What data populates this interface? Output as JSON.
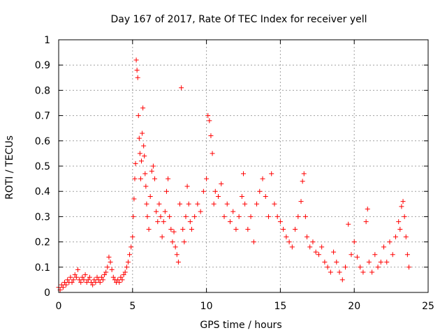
{
  "chart_data": {
    "type": "scatter",
    "title": "Day 167 of 2017, Rate Of TEC Index for receiver yell",
    "xlabel": "GPS time / hours",
    "ylabel": "ROTI / TECUs",
    "xlim": [
      0,
      25
    ],
    "ylim": [
      0,
      1
    ],
    "x_ticks": [
      0,
      5,
      10,
      15,
      20,
      25
    ],
    "y_ticks": [
      0,
      0.1,
      0.2,
      0.3,
      0.4,
      0.5,
      0.6,
      0.7,
      0.8,
      0.9,
      1
    ],
    "x_tick_labels": [
      "0",
      "5",
      "10",
      "15",
      "20",
      "25"
    ],
    "y_tick_labels": [
      "0",
      "0.1",
      "0.2",
      "0.3",
      "0.4",
      "0.5",
      "0.6",
      "0.7",
      "0.8",
      "0.9",
      "1"
    ],
    "grid": true,
    "marker": "plus",
    "color": "#ff0000",
    "series": [
      {
        "points": [
          [
            0.0,
            0.02
          ],
          [
            0.1,
            0.01
          ],
          [
            0.2,
            0.03
          ],
          [
            0.3,
            0.02
          ],
          [
            0.4,
            0.04
          ],
          [
            0.5,
            0.03
          ],
          [
            0.6,
            0.05
          ],
          [
            0.7,
            0.04
          ],
          [
            0.8,
            0.06
          ],
          [
            0.9,
            0.04
          ],
          [
            1.0,
            0.05
          ],
          [
            1.1,
            0.07
          ],
          [
            1.2,
            0.06
          ],
          [
            1.3,
            0.09
          ],
          [
            1.4,
            0.05
          ],
          [
            1.5,
            0.04
          ],
          [
            1.6,
            0.06
          ],
          [
            1.7,
            0.05
          ],
          [
            1.8,
            0.07
          ],
          [
            1.9,
            0.04
          ],
          [
            2.0,
            0.05
          ],
          [
            2.1,
            0.06
          ],
          [
            2.2,
            0.04
          ],
          [
            2.3,
            0.03
          ],
          [
            2.4,
            0.05
          ],
          [
            2.5,
            0.04
          ],
          [
            2.6,
            0.06
          ],
          [
            2.7,
            0.05
          ],
          [
            2.8,
            0.04
          ],
          [
            2.9,
            0.06
          ],
          [
            3.0,
            0.05
          ],
          [
            3.1,
            0.07
          ],
          [
            3.2,
            0.08
          ],
          [
            3.3,
            0.1
          ],
          [
            3.4,
            0.14
          ],
          [
            3.5,
            0.12
          ],
          [
            3.6,
            0.09
          ],
          [
            3.7,
            0.06
          ],
          [
            3.8,
            0.05
          ],
          [
            3.9,
            0.04
          ],
          [
            4.0,
            0.05
          ],
          [
            4.1,
            0.04
          ],
          [
            4.2,
            0.06
          ],
          [
            4.3,
            0.05
          ],
          [
            4.4,
            0.07
          ],
          [
            4.5,
            0.08
          ],
          [
            4.6,
            0.1
          ],
          [
            4.7,
            0.12
          ],
          [
            4.8,
            0.15
          ],
          [
            4.9,
            0.18
          ],
          [
            5.0,
            0.22
          ],
          [
            5.05,
            0.3
          ],
          [
            5.1,
            0.37
          ],
          [
            5.15,
            0.45
          ],
          [
            5.2,
            0.51
          ],
          [
            5.25,
            0.92
          ],
          [
            5.3,
            0.88
          ],
          [
            5.35,
            0.85
          ],
          [
            5.4,
            0.7
          ],
          [
            5.45,
            0.61
          ],
          [
            5.5,
            0.55
          ],
          [
            5.55,
            0.45
          ],
          [
            5.6,
            0.52
          ],
          [
            5.65,
            0.63
          ],
          [
            5.7,
            0.73
          ],
          [
            5.75,
            0.58
          ],
          [
            5.8,
            0.54
          ],
          [
            5.85,
            0.47
          ],
          [
            5.9,
            0.42
          ],
          [
            5.95,
            0.35
          ],
          [
            6.0,
            0.3
          ],
          [
            6.1,
            0.25
          ],
          [
            6.2,
            0.38
          ],
          [
            6.3,
            0.48
          ],
          [
            6.4,
            0.5
          ],
          [
            6.5,
            0.45
          ],
          [
            6.6,
            0.32
          ],
          [
            6.7,
            0.28
          ],
          [
            6.8,
            0.35
          ],
          [
            6.9,
            0.3
          ],
          [
            7.0,
            0.22
          ],
          [
            7.1,
            0.28
          ],
          [
            7.2,
            0.32
          ],
          [
            7.3,
            0.4
          ],
          [
            7.4,
            0.45
          ],
          [
            7.5,
            0.3
          ],
          [
            7.6,
            0.25
          ],
          [
            7.7,
            0.2
          ],
          [
            7.8,
            0.24
          ],
          [
            7.9,
            0.18
          ],
          [
            8.0,
            0.15
          ],
          [
            8.1,
            0.12
          ],
          [
            8.2,
            0.35
          ],
          [
            8.3,
            0.81
          ],
          [
            8.4,
            0.25
          ],
          [
            8.5,
            0.2
          ],
          [
            8.6,
            0.3
          ],
          [
            8.7,
            0.42
          ],
          [
            8.8,
            0.35
          ],
          [
            8.9,
            0.28
          ],
          [
            9.0,
            0.25
          ],
          [
            9.2,
            0.3
          ],
          [
            9.4,
            0.35
          ],
          [
            9.6,
            0.32
          ],
          [
            9.8,
            0.4
          ],
          [
            10.0,
            0.45
          ],
          [
            10.1,
            0.7
          ],
          [
            10.2,
            0.68
          ],
          [
            10.3,
            0.62
          ],
          [
            10.4,
            0.55
          ],
          [
            10.5,
            0.35
          ],
          [
            10.6,
            0.4
          ],
          [
            10.8,
            0.38
          ],
          [
            11.0,
            0.43
          ],
          [
            11.2,
            0.3
          ],
          [
            11.4,
            0.35
          ],
          [
            11.6,
            0.28
          ],
          [
            11.8,
            0.32
          ],
          [
            12.0,
            0.25
          ],
          [
            12.2,
            0.3
          ],
          [
            12.4,
            0.38
          ],
          [
            12.5,
            0.47
          ],
          [
            12.6,
            0.35
          ],
          [
            12.8,
            0.25
          ],
          [
            13.0,
            0.3
          ],
          [
            13.2,
            0.2
          ],
          [
            13.4,
            0.35
          ],
          [
            13.6,
            0.4
          ],
          [
            13.8,
            0.45
          ],
          [
            14.0,
            0.38
          ],
          [
            14.2,
            0.3
          ],
          [
            14.4,
            0.47
          ],
          [
            14.6,
            0.35
          ],
          [
            14.8,
            0.3
          ],
          [
            15.0,
            0.28
          ],
          [
            15.2,
            0.25
          ],
          [
            15.4,
            0.22
          ],
          [
            15.6,
            0.2
          ],
          [
            15.8,
            0.18
          ],
          [
            16.0,
            0.25
          ],
          [
            16.2,
            0.3
          ],
          [
            16.4,
            0.36
          ],
          [
            16.5,
            0.44
          ],
          [
            16.6,
            0.47
          ],
          [
            16.7,
            0.3
          ],
          [
            16.8,
            0.22
          ],
          [
            17.0,
            0.18
          ],
          [
            17.2,
            0.2
          ],
          [
            17.4,
            0.16
          ],
          [
            17.6,
            0.15
          ],
          [
            17.8,
            0.18
          ],
          [
            18.0,
            0.12
          ],
          [
            18.2,
            0.1
          ],
          [
            18.4,
            0.08
          ],
          [
            18.6,
            0.16
          ],
          [
            18.8,
            0.12
          ],
          [
            19.0,
            0.08
          ],
          [
            19.2,
            0.05
          ],
          [
            19.4,
            0.1
          ],
          [
            19.6,
            0.27
          ],
          [
            19.8,
            0.15
          ],
          [
            20.0,
            0.2
          ],
          [
            20.2,
            0.14
          ],
          [
            20.4,
            0.1
          ],
          [
            20.6,
            0.08
          ],
          [
            20.8,
            0.28
          ],
          [
            20.9,
            0.33
          ],
          [
            21.0,
            0.12
          ],
          [
            21.2,
            0.08
          ],
          [
            21.4,
            0.15
          ],
          [
            21.6,
            0.1
          ],
          [
            21.8,
            0.12
          ],
          [
            22.0,
            0.18
          ],
          [
            22.2,
            0.12
          ],
          [
            22.4,
            0.2
          ],
          [
            22.6,
            0.15
          ],
          [
            22.8,
            0.22
          ],
          [
            23.0,
            0.28
          ],
          [
            23.1,
            0.25
          ],
          [
            23.2,
            0.34
          ],
          [
            23.3,
            0.36
          ],
          [
            23.4,
            0.3
          ],
          [
            23.5,
            0.22
          ],
          [
            23.6,
            0.15
          ],
          [
            23.7,
            0.1
          ]
        ]
      }
    ]
  }
}
